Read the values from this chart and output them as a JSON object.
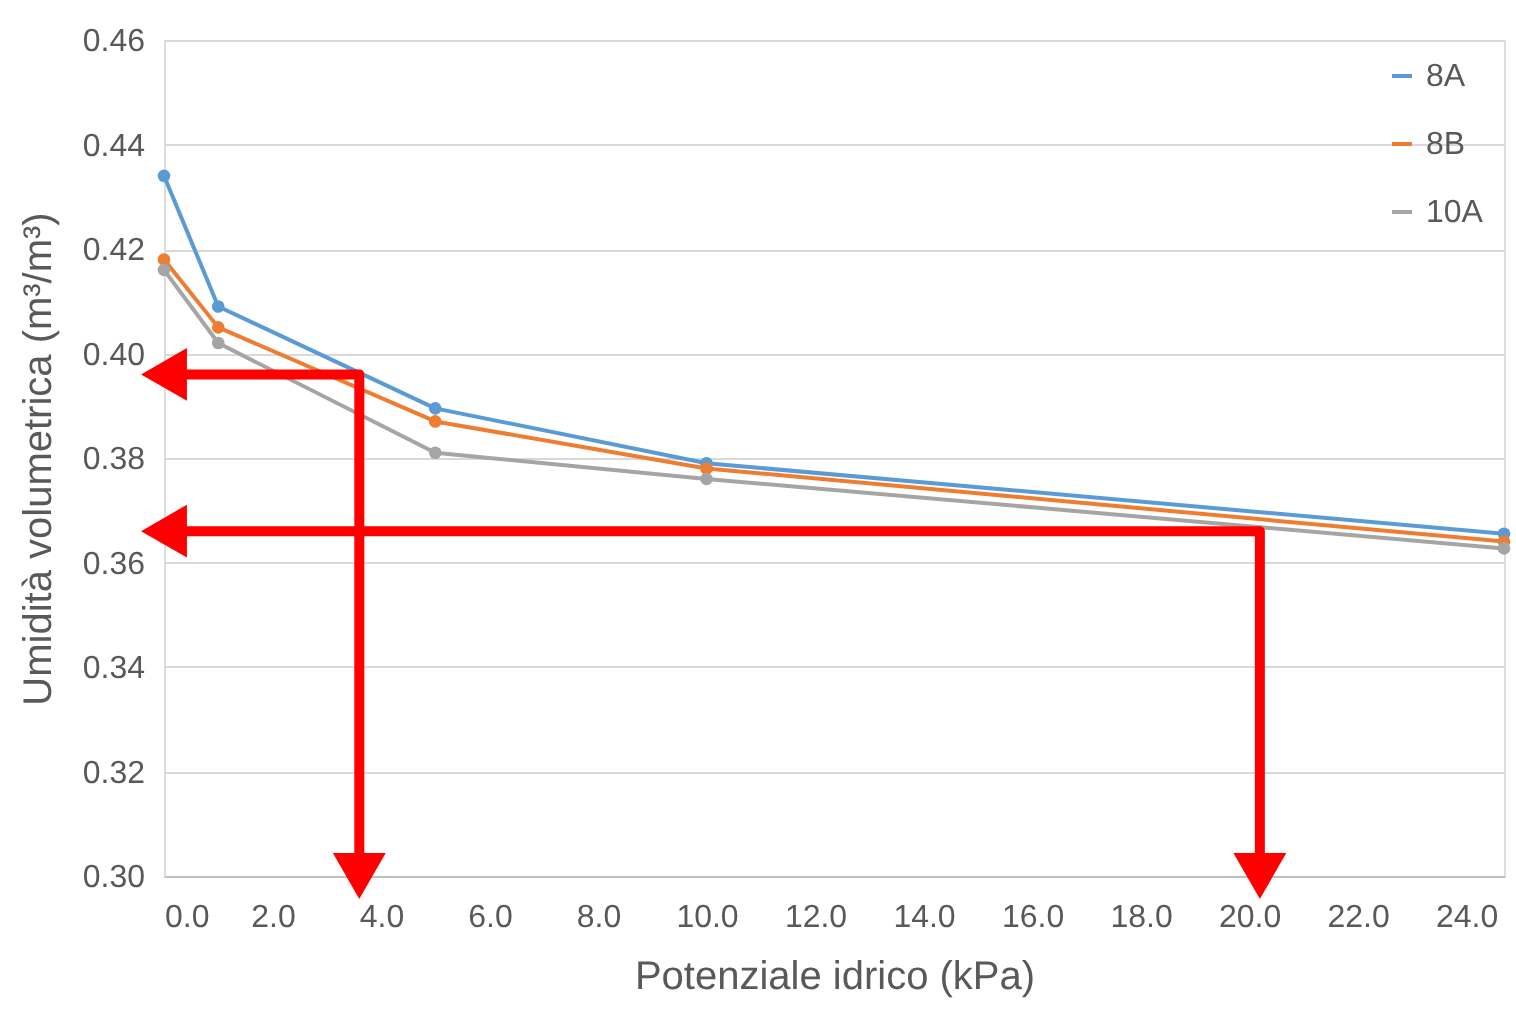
{
  "chart_data": {
    "type": "line",
    "xlabel": "Potenziale idrico (kPa)",
    "ylabel": "Umidità volumetrica (m³/m³)",
    "xlim": [
      0,
      24.7
    ],
    "ylim": [
      0.3,
      0.46
    ],
    "xticks": [
      {
        "value": 0,
        "label": "0.0"
      },
      {
        "value": 2,
        "label": "2.0"
      },
      {
        "value": 4,
        "label": "4.0"
      },
      {
        "value": 6,
        "label": "6.0"
      },
      {
        "value": 8,
        "label": "8.0"
      },
      {
        "value": 10,
        "label": "10.0"
      },
      {
        "value": 12,
        "label": "12.0"
      },
      {
        "value": 14,
        "label": "14.0"
      },
      {
        "value": 16,
        "label": "16.0"
      },
      {
        "value": 18,
        "label": "18.0"
      },
      {
        "value": 20,
        "label": "20.0"
      },
      {
        "value": 22,
        "label": "22.0"
      },
      {
        "value": 24,
        "label": "24.0"
      }
    ],
    "yticks": [
      {
        "value": 0.3,
        "label": "0.30"
      },
      {
        "value": 0.32,
        "label": "0.32"
      },
      {
        "value": 0.34,
        "label": "0.34"
      },
      {
        "value": 0.36,
        "label": "0.36"
      },
      {
        "value": 0.38,
        "label": "0.38"
      },
      {
        "value": 0.4,
        "label": "0.40"
      },
      {
        "value": 0.42,
        "label": "0.42"
      },
      {
        "value": 0.44,
        "label": "0.44"
      },
      {
        "value": 0.46,
        "label": "0.46"
      }
    ],
    "grid": "y",
    "legend": "top right",
    "marker": "circle",
    "line_style": "solid",
    "series": [
      {
        "name": "8A",
        "color": "#5b9bd5",
        "x": [
          0,
          1,
          5,
          10,
          24.7
        ],
        "values": [
          0.434,
          0.409,
          0.3895,
          0.379,
          0.3655
        ]
      },
      {
        "name": "8B",
        "color": "#ed7d31",
        "x": [
          0,
          1,
          5,
          10,
          24.7
        ],
        "values": [
          0.418,
          0.405,
          0.387,
          0.378,
          0.364
        ]
      },
      {
        "name": "10A",
        "color": "#a5a5a5",
        "x": [
          0,
          1,
          5,
          10,
          24.7
        ],
        "values": [
          0.416,
          0.402,
          0.381,
          0.376,
          0.3627
        ]
      },
      {
        "color": "#ff0000",
        "marker": "triangle",
        "x": [
          0,
          3.6,
          3.6
        ],
        "values": [
          0.396,
          0.396,
          0.3
        ]
      },
      {
        "color": "#ff0000",
        "marker": "triangle",
        "x": [
          0,
          20.2,
          20.2
        ],
        "values": [
          0.366,
          0.366,
          0.3
        ]
      }
    ]
  }
}
